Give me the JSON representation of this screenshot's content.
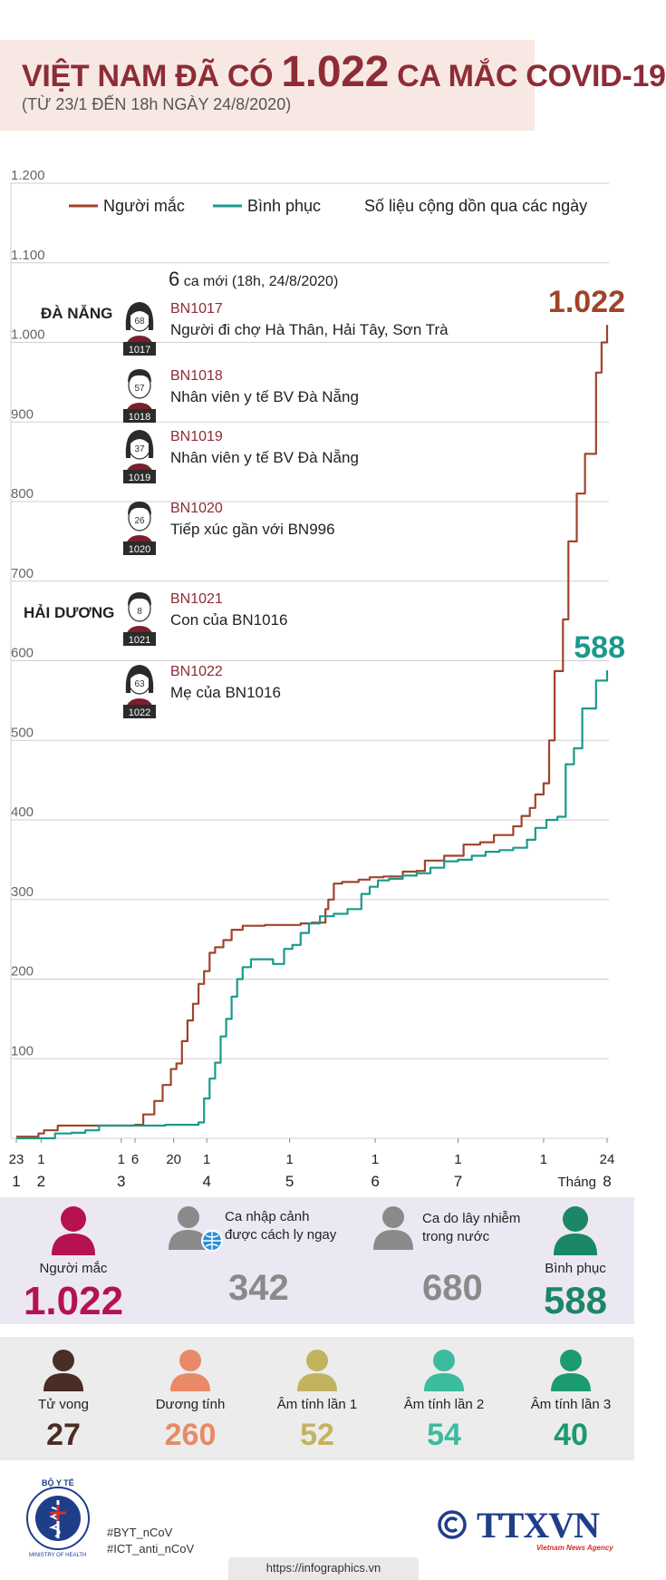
{
  "header": {
    "title_pre": "VIỆT NAM ĐÃ CÓ ",
    "title_number": "1.022",
    "title_post": " CA MẮC COVID-19",
    "subtitle": "(TỪ 23/1 ĐẾN 18h NGÀY 24/8/2020)"
  },
  "legend": {
    "infected": "Người mắc",
    "recovered": "Bình phục",
    "note": "Số liệu cộng dồn qua các ngày"
  },
  "colors": {
    "infected": "#a0432b",
    "recovered": "#1a9a8c",
    "title": "#8e2c36",
    "magenta": "#b5124f",
    "grey": "#8a8a8a",
    "green": "#1b8766"
  },
  "chart_data": {
    "type": "line",
    "ylim": [
      0,
      1200
    ],
    "yticks": [
      "100",
      "200",
      "300",
      "400",
      "500",
      "600",
      "700",
      "800",
      "900",
      "1.000",
      "1.100",
      "1.200"
    ],
    "x_tick_labels": [
      {
        "day": 0,
        "label": "23"
      },
      {
        "day": 9,
        "label": "1"
      },
      {
        "day": 38,
        "label": "1"
      },
      {
        "day": 43,
        "label": "6"
      },
      {
        "day": 57,
        "label": "20"
      },
      {
        "day": 69,
        "label": "1"
      },
      {
        "day": 99,
        "label": "1"
      },
      {
        "day": 130,
        "label": "1"
      },
      {
        "day": 160,
        "label": "1"
      },
      {
        "day": 191,
        "label": "1"
      },
      {
        "day": 214,
        "label": "24"
      }
    ],
    "month_labels": [
      {
        "day": 0,
        "label": "1"
      },
      {
        "day": 9,
        "label": "2"
      },
      {
        "day": 38,
        "label": "3"
      },
      {
        "day": 69,
        "label": "4"
      },
      {
        "day": 99,
        "label": "5"
      },
      {
        "day": 130,
        "label": "6"
      },
      {
        "day": 160,
        "label": "7"
      },
      {
        "day": 214,
        "label": "8"
      }
    ],
    "month_word": "Tháng",
    "series": [
      {
        "name": "Người mắc",
        "color": "#a0432b",
        "end_label": "1.022",
        "points": [
          [
            0,
            2
          ],
          [
            8,
            6
          ],
          [
            10,
            10
          ],
          [
            15,
            16
          ],
          [
            24,
            16
          ],
          [
            30,
            16
          ],
          [
            41,
            16
          ],
          [
            43,
            17
          ],
          [
            46,
            30
          ],
          [
            50,
            47
          ],
          [
            53,
            67
          ],
          [
            56,
            87
          ],
          [
            58,
            94
          ],
          [
            60,
            122
          ],
          [
            62,
            148
          ],
          [
            64,
            169
          ],
          [
            66,
            194
          ],
          [
            68,
            210
          ],
          [
            70,
            233
          ],
          [
            72,
            240
          ],
          [
            75,
            249
          ],
          [
            78,
            262
          ],
          [
            82,
            267
          ],
          [
            90,
            268
          ],
          [
            97,
            268
          ],
          [
            103,
            270
          ],
          [
            107,
            271
          ],
          [
            112,
            288
          ],
          [
            113,
            300
          ],
          [
            115,
            320
          ],
          [
            118,
            322
          ],
          [
            124,
            325
          ],
          [
            128,
            328
          ],
          [
            133,
            329
          ],
          [
            140,
            335
          ],
          [
            145,
            336
          ],
          [
            148,
            349
          ],
          [
            155,
            355
          ],
          [
            162,
            369
          ],
          [
            168,
            372
          ],
          [
            173,
            381
          ],
          [
            176,
            381
          ],
          [
            180,
            392
          ],
          [
            183,
            405
          ],
          [
            186,
            415
          ],
          [
            188,
            432
          ],
          [
            191,
            446
          ],
          [
            193,
            500
          ],
          [
            195,
            587
          ],
          [
            198,
            652
          ],
          [
            200,
            750
          ],
          [
            203,
            810
          ],
          [
            206,
            860
          ],
          [
            210,
            962
          ],
          [
            212,
            1000
          ],
          [
            214,
            1022
          ]
        ]
      },
      {
        "name": "Bình phục",
        "color": "#1a9a8c",
        "end_label": "588",
        "points": [
          [
            0,
            0
          ],
          [
            10,
            0
          ],
          [
            14,
            6
          ],
          [
            20,
            7
          ],
          [
            25,
            10
          ],
          [
            30,
            16
          ],
          [
            40,
            16
          ],
          [
            43,
            16
          ],
          [
            50,
            16
          ],
          [
            54,
            17
          ],
          [
            60,
            17
          ],
          [
            66,
            20
          ],
          [
            68,
            50
          ],
          [
            70,
            75
          ],
          [
            72,
            95
          ],
          [
            74,
            128
          ],
          [
            76,
            150
          ],
          [
            78,
            178
          ],
          [
            80,
            200
          ],
          [
            82,
            215
          ],
          [
            85,
            225
          ],
          [
            90,
            225
          ],
          [
            93,
            219
          ],
          [
            97,
            238
          ],
          [
            100,
            243
          ],
          [
            103,
            258
          ],
          [
            106,
            270
          ],
          [
            110,
            279
          ],
          [
            115,
            282
          ],
          [
            120,
            288
          ],
          [
            125,
            307
          ],
          [
            128,
            316
          ],
          [
            131,
            324
          ],
          [
            135,
            326
          ],
          [
            140,
            330
          ],
          [
            145,
            333
          ],
          [
            150,
            340
          ],
          [
            155,
            348
          ],
          [
            160,
            350
          ],
          [
            165,
            355
          ],
          [
            170,
            360
          ],
          [
            175,
            362
          ],
          [
            180,
            365
          ],
          [
            185,
            375
          ],
          [
            188,
            390
          ],
          [
            192,
            400
          ],
          [
            196,
            404
          ],
          [
            199,
            470
          ],
          [
            202,
            490
          ],
          [
            205,
            540
          ],
          [
            210,
            575
          ],
          [
            214,
            588
          ]
        ]
      }
    ]
  },
  "new_cases": {
    "count": "6",
    "title_rest": " ca mới (18h, 24/8/2020)",
    "regions": [
      "ĐÀ NẴNG",
      "HẢI DƯƠNG"
    ],
    "cases": [
      {
        "id": "BN1017",
        "age": "68",
        "tag": "1017",
        "gender": "f",
        "desc": "Người đi chợ Hà Thân, Hải Tây, Sơn Trà"
      },
      {
        "id": "BN1018",
        "age": "57",
        "tag": "1018",
        "gender": "m",
        "desc": "Nhân viên y tế BV Đà Nẵng"
      },
      {
        "id": "BN1019",
        "age": "37",
        "tag": "1019",
        "gender": "f",
        "desc": "Nhân viên y tế BV Đà Nẵng"
      },
      {
        "id": "BN1020",
        "age": "26",
        "tag": "1020",
        "gender": "m",
        "desc": "Tiếp xúc gần với BN996"
      },
      {
        "id": "BN1021",
        "age": "8",
        "tag": "1021",
        "gender": "m",
        "desc": "Con của BN1016"
      },
      {
        "id": "BN1022",
        "age": "63",
        "tag": "1022",
        "gender": "f",
        "desc": "Mẹ của BN1016"
      }
    ]
  },
  "summary": {
    "infected_label": "Người mắc",
    "infected_value": "1.022",
    "imported_label_1": "Ca nhập cảnh",
    "imported_label_2": "được cách ly ngay",
    "imported_value": "342",
    "domestic_label_1": "Ca do lây nhiễm",
    "domestic_label_2": "trong nước",
    "domestic_value": "680",
    "recovered_label": "Bình phục",
    "recovered_value": "588"
  },
  "tests": {
    "items": [
      {
        "label": "Tử vong",
        "value": "27",
        "color": "#4a2d24"
      },
      {
        "label": "Dương tính",
        "value": "260",
        "color": "#e88a67"
      },
      {
        "label": "Âm tính lần 1",
        "value": "52",
        "color": "#c2b360"
      },
      {
        "label": "Âm tính lần 2",
        "value": "54",
        "color": "#3dbb9e"
      },
      {
        "label": "Âm tính lần 3",
        "value": "40",
        "color": "#1c9a72"
      }
    ]
  },
  "footer": {
    "logo_text": "BỘ Y TẾ",
    "logo_sub": "MINISTRY OF HEALTH",
    "tag1": "#BYT_nCoV",
    "tag2": "#ICT_anti_nCoV",
    "agency": "TTXVN",
    "agency_sub": "Vietnam News Agency",
    "url": "https://infographics.vn"
  }
}
